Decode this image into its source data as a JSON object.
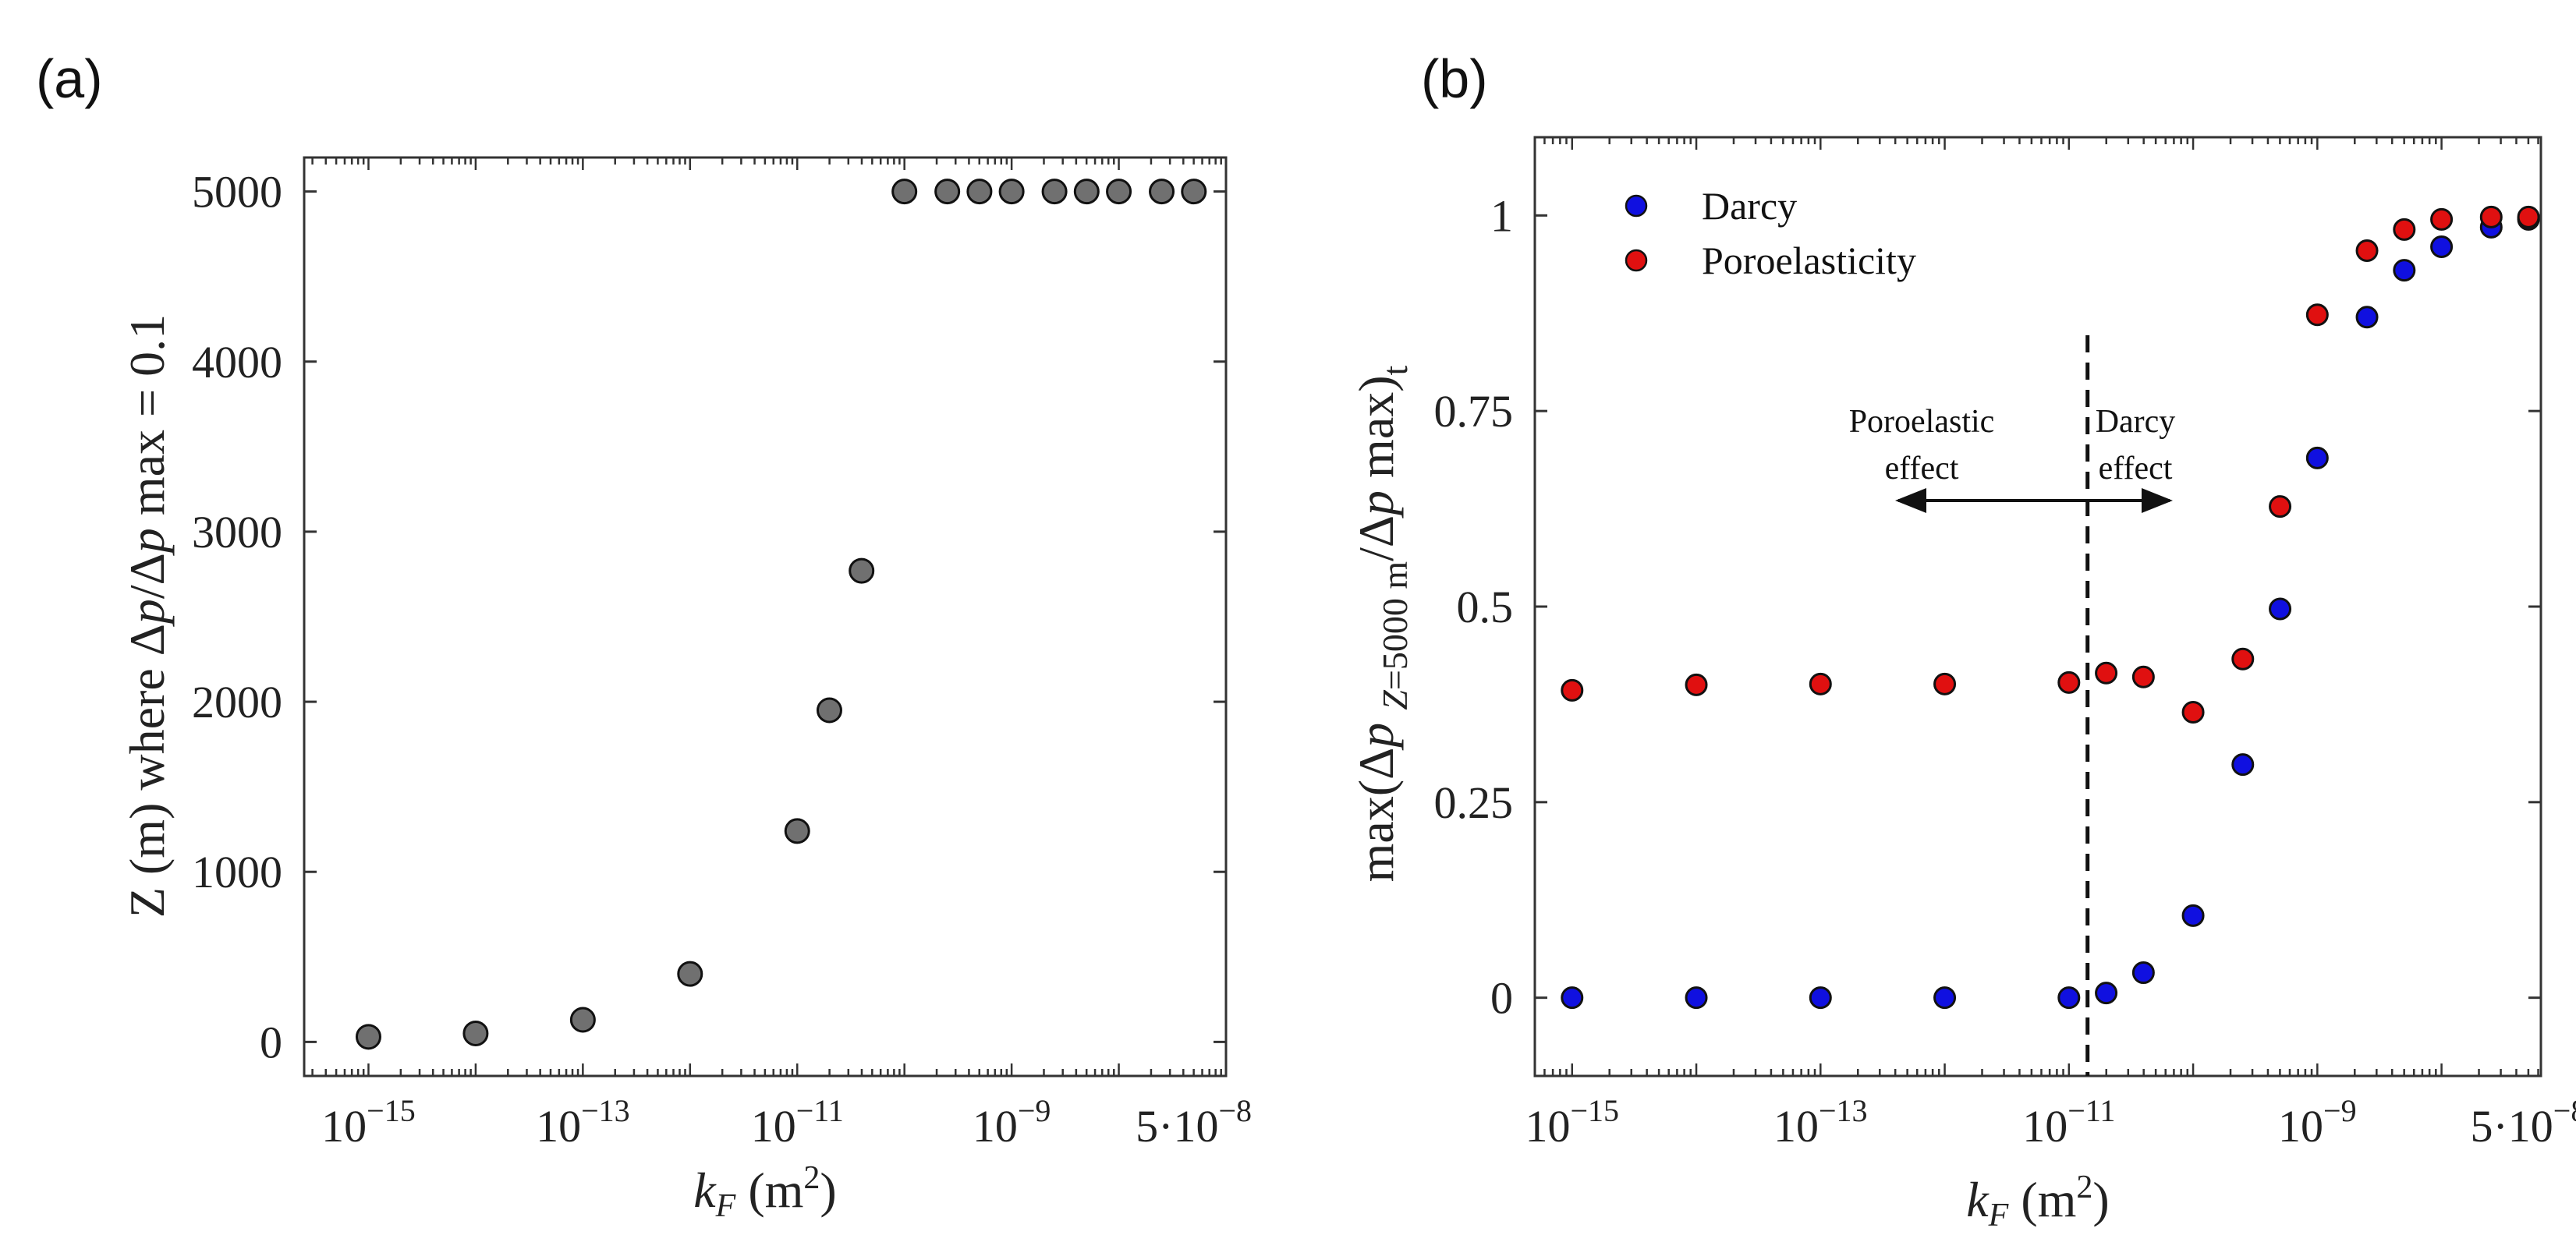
{
  "panels": {
    "a": {
      "label": "(a)"
    },
    "b": {
      "label": "(b)"
    }
  },
  "colors": {
    "gray_marker": "#707070",
    "darcy": "#1010e0",
    "poroelasticity": "#e01010",
    "axis": "#333333"
  },
  "chart_data": [
    {
      "type": "scatter",
      "panel": "a",
      "title": "",
      "xlabel": "k_F (m^2)",
      "ylabel": "Z (m) where Δp/Δp max = 0.1",
      "xscale": "log",
      "xlim_log10": [
        -15.6,
        -7.0
      ],
      "ylim": [
        -200,
        5200
      ],
      "xticks_log10": [
        -15,
        -13,
        -11,
        -9,
        -7.30103
      ],
      "xtick_labels": [
        {
          "base": "10",
          "exp": "−15"
        },
        {
          "base": "10",
          "exp": "−13"
        },
        {
          "base": "10",
          "exp": "−11"
        },
        {
          "base": "10",
          "exp": "−9"
        },
        {
          "base": "5·10",
          "exp": "−8"
        }
      ],
      "yticks": [
        0,
        1000,
        2000,
        3000,
        4000,
        5000
      ],
      "ytick_labels": [
        "0",
        "1000",
        "2000",
        "3000",
        "4000",
        "5000"
      ],
      "series": [
        {
          "name": "Z",
          "x_log10": [
            -15,
            -14,
            -13,
            -12,
            -11,
            -10.7,
            -10.4,
            -10,
            -9.6,
            -9.3,
            -9,
            -8.6,
            -8.3,
            -8,
            -7.6,
            -7.3
          ],
          "values": [
            30,
            50,
            130,
            400,
            1240,
            1950,
            2770,
            5000,
            5000,
            5000,
            5000,
            5000,
            5000,
            5000,
            5000,
            5000
          ]
        }
      ]
    },
    {
      "type": "scatter",
      "panel": "b",
      "title": "",
      "xlabel": "k_F (m^2)",
      "ylabel": "max(Δp Z=5000 m / Δp max)t",
      "xscale": "log",
      "xlim_log10": [
        -15.3,
        -7.2
      ],
      "ylim": [
        -0.1,
        1.1
      ],
      "xticks_log10": [
        -15,
        -13,
        -11,
        -9,
        -7.30103
      ],
      "xtick_labels": [
        {
          "base": "10",
          "exp": "−15"
        },
        {
          "base": "10",
          "exp": "−13"
        },
        {
          "base": "10",
          "exp": "−11"
        },
        {
          "base": "10",
          "exp": "−9"
        },
        {
          "base": "5·10",
          "exp": "−8"
        }
      ],
      "yticks": [
        0,
        0.25,
        0.5,
        0.75,
        1
      ],
      "ytick_labels": [
        "0",
        "0.25",
        "0.5",
        "0.75",
        "1"
      ],
      "legend": {
        "placement": "top-left",
        "entries": [
          "Darcy",
          "Poroelasticity"
        ]
      },
      "series": [
        {
          "name": "Darcy",
          "x_log10": [
            -15,
            -14,
            -13,
            -12,
            -11,
            -10.7,
            -10.4,
            -10,
            -9.6,
            -9.3,
            -9,
            -8.6,
            -8.3,
            -8,
            -7.6,
            -7.3
          ],
          "values": [
            0.0,
            0.0,
            0.0,
            0.0,
            0.0,
            0.006,
            0.032,
            0.105,
            0.298,
            0.497,
            0.69,
            0.87,
            0.93,
            0.96,
            0.985,
            0.995
          ]
        },
        {
          "name": "Poroelasticity",
          "x_log10": [
            -15,
            -14,
            -13,
            -12,
            -11,
            -10.7,
            -10.4,
            -10,
            -9.6,
            -9.3,
            -9,
            -8.6,
            -8.3,
            -8,
            -7.6,
            -7.3
          ],
          "values": [
            0.393,
            0.4,
            0.401,
            0.401,
            0.403,
            0.415,
            0.41,
            0.365,
            0.433,
            0.628,
            0.873,
            0.955,
            0.982,
            0.995,
            0.998,
            0.998
          ]
        }
      ],
      "annotations": {
        "divider_log10": -10.85,
        "left_label_line1": "Poroelastic",
        "left_label_line2": "effect",
        "right_label_line1": "Darcy",
        "right_label_line2": "effect"
      }
    }
  ]
}
